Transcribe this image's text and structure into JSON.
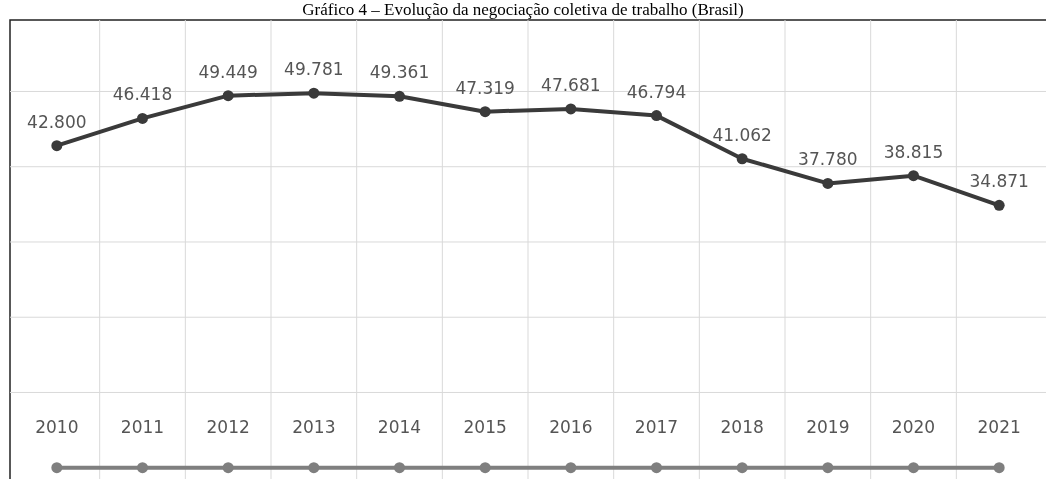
{
  "chart_data": {
    "type": "line",
    "title": "Gráfico 4 – Evolução da negociação coletiva de trabalho (Brasil)",
    "categories": [
      "2010",
      "2011",
      "2012",
      "2013",
      "2014",
      "2015",
      "2016",
      "2017",
      "2018",
      "2019",
      "2020",
      "2021"
    ],
    "series": [
      {
        "color": "#3a3a3a",
        "values": [
          42800,
          46418,
          49449,
          49781,
          49361,
          47319,
          47681,
          46794,
          41062,
          37780,
          38815,
          34871
        ],
        "value_labels": [
          "42.800",
          "46.418",
          "49.449",
          "49.781",
          "49.361",
          "47.319",
          "47.681",
          "46.794",
          "41.062",
          "37.780",
          "38.815",
          "34.871"
        ]
      },
      {
        "color": "#7f7f7f",
        "values": [
          0,
          0,
          0,
          0,
          0,
          0,
          0,
          0,
          0,
          0,
          0,
          0
        ]
      }
    ],
    "ylim": [
      -1500,
      59500
    ],
    "yticks": [
      {
        "value": 10000,
        "label": null
      },
      {
        "value": 20000,
        "label": null
      },
      {
        "value": 30000,
        "label": null
      },
      {
        "value": 40000,
        "label": null
      },
      {
        "value": 50000,
        "label": null
      }
    ],
    "grid": true,
    "marker": "circle",
    "line_style": "solid",
    "tick_labels": "x"
  }
}
